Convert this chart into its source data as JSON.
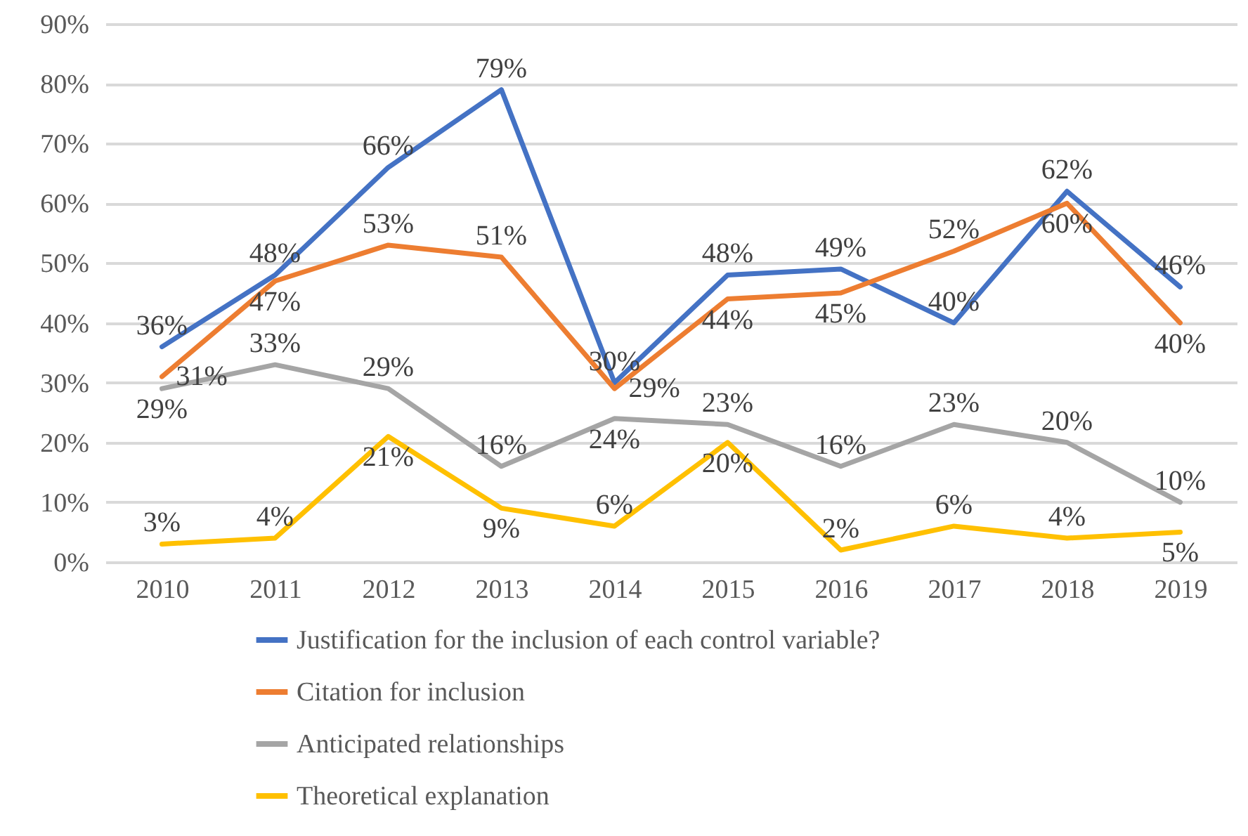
{
  "chart_data": {
    "type": "line",
    "categories": [
      "2010",
      "2011",
      "2012",
      "2013",
      "2014",
      "2015",
      "2016",
      "2017",
      "2018",
      "2019"
    ],
    "series": [
      {
        "name": "Justification for the inclusion of each control variable?",
        "color": "#4472c4",
        "values": [
          36,
          48,
          66,
          79,
          30,
          48,
          49,
          40,
          62,
          46
        ],
        "value_labels": [
          "36%",
          "48%",
          "66%",
          "79%",
          "30%",
          "48%",
          "49%",
          "40%",
          "62%",
          "46%"
        ]
      },
      {
        "name": "Citation for inclusion",
        "color": "#ed7d31",
        "values": [
          31,
          47,
          53,
          51,
          29,
          44,
          45,
          52,
          60,
          40
        ],
        "value_labels": [
          "31%",
          "47%",
          "53%",
          "51%",
          "29%",
          "44%",
          "45%",
          "52%",
          "60%",
          "40%"
        ]
      },
      {
        "name": "Anticipated relationships",
        "color": "#a5a5a5",
        "values": [
          29,
          33,
          29,
          16,
          24,
          23,
          16,
          23,
          20,
          10
        ],
        "value_labels": [
          "29%",
          "33%",
          "29%",
          "16%",
          "24%",
          "23%",
          "16%",
          "23%",
          "20%",
          "10%"
        ]
      },
      {
        "name": "Theoretical explanation",
        "color": "#ffc000",
        "values": [
          3,
          4,
          21,
          9,
          6,
          20,
          2,
          6,
          4,
          5
        ],
        "value_labels": [
          "3%",
          "4%",
          "21%",
          "9%",
          "6%",
          "20%",
          "2%",
          "6%",
          "4%",
          "5%"
        ]
      }
    ],
    "ylim": [
      0,
      90
    ],
    "yticks": [
      {
        "value": 0,
        "label": "0%"
      },
      {
        "value": 10,
        "label": "10%"
      },
      {
        "value": 20,
        "label": "20%"
      },
      {
        "value": 30,
        "label": "30%"
      },
      {
        "value": 40,
        "label": "40%"
      },
      {
        "value": 50,
        "label": "50%"
      },
      {
        "value": 60,
        "label": "60%"
      },
      {
        "value": 70,
        "label": "70%"
      },
      {
        "value": 80,
        "label": "80%"
      },
      {
        "value": 90,
        "label": "90%"
      }
    ],
    "grid": "y",
    "legend": "bottom",
    "marker": "none",
    "line_style": "solid"
  }
}
